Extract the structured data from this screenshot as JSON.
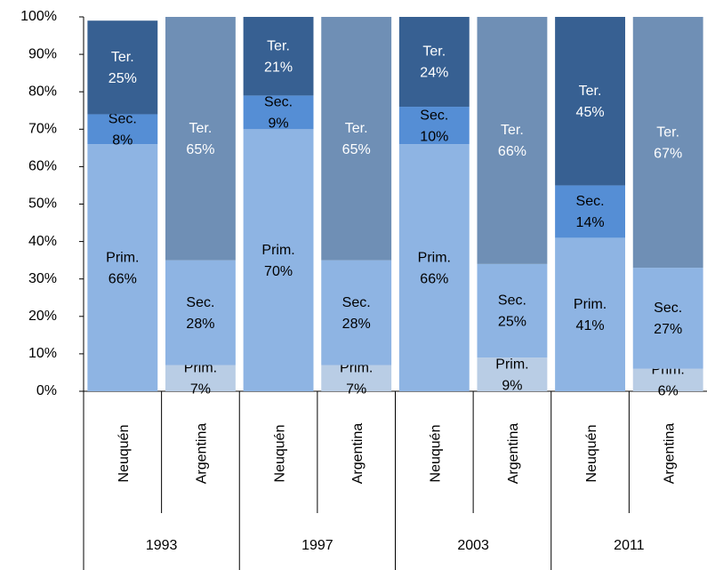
{
  "chart_data": {
    "type": "stacked_bar",
    "categories": [
      "Neuquén",
      "Argentina",
      "Neuquén",
      "Argentina",
      "Neuquén",
      "Argentina",
      "Neuquén",
      "Argentina"
    ],
    "groups": [
      "1993",
      "1997",
      "2003",
      "2011"
    ],
    "series": [
      {
        "name": "Prim.",
        "colors": [
          "#8eb4e3",
          "#b9cde5",
          "#8eb4e3",
          "#b9cde5",
          "#8eb4e3",
          "#b9cde5",
          "#8eb4e3",
          "#b9cde5"
        ],
        "values": [
          66,
          7,
          70,
          7,
          66,
          9,
          41,
          6
        ],
        "value_labels": [
          "66%",
          "7%",
          "70%",
          "7%",
          "66%",
          "9%",
          "41%",
          "6%"
        ]
      },
      {
        "name": "Sec.",
        "colors": [
          "#558ed5",
          "#8eb4e3",
          "#558ed5",
          "#8eb4e3",
          "#558ed5",
          "#8eb4e3",
          "#558ed5",
          "#8eb4e3"
        ],
        "values": [
          8,
          28,
          9,
          28,
          10,
          25,
          14,
          27
        ],
        "value_labels": [
          "8%",
          "28%",
          "9%",
          "28%",
          "10%",
          "25%",
          "14%",
          "27%"
        ]
      },
      {
        "name": "Ter.",
        "colors": [
          "#376092",
          "#6f8fb5",
          "#376092",
          "#6f8fb5",
          "#376092",
          "#6f8fb5",
          "#376092",
          "#6f8fb5"
        ],
        "values": [
          25,
          65,
          21,
          65,
          24,
          66,
          45,
          67
        ],
        "value_labels": [
          "25%",
          "65%",
          "21%",
          "65%",
          "24%",
          "66%",
          "45%",
          "67%"
        ]
      }
    ],
    "ylim": [
      0,
      100
    ],
    "yticks": [
      {
        "value": 0,
        "label": "0%"
      },
      {
        "value": 10,
        "label": "10%"
      },
      {
        "value": 20,
        "label": "20%"
      },
      {
        "value": 30,
        "label": "30%"
      },
      {
        "value": 40,
        "label": "40%"
      },
      {
        "value": 50,
        "label": "50%"
      },
      {
        "value": 60,
        "label": "60%"
      },
      {
        "value": 70,
        "label": "70%"
      },
      {
        "value": 80,
        "label": "80%"
      },
      {
        "value": 90,
        "label": "90%"
      },
      {
        "value": 100,
        "label": "100%"
      }
    ]
  }
}
